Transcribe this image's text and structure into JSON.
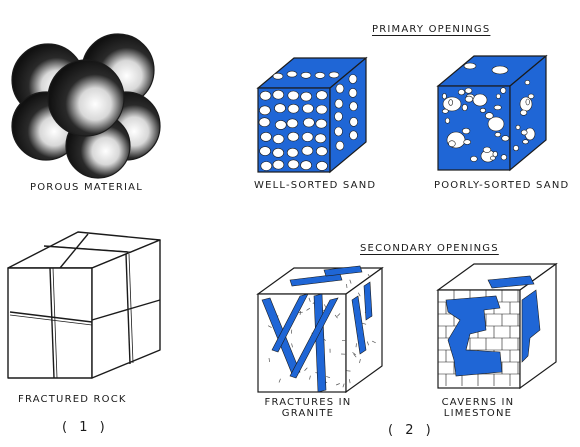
{
  "headers": {
    "primary": "PRIMARY OPENINGS",
    "secondary": "SECONDARY OPENINGS"
  },
  "labels": {
    "porous": "POROUS MATERIAL",
    "well_sorted": "WELL-SORTED SAND",
    "poorly_sorted": "POORLY-SORTED SAND",
    "fractured": "FRACTURED ROCK",
    "fractures_line1": "FRACTURES IN",
    "fractures_line2": "GRANITE",
    "caverns_line1": "CAVERNS IN",
    "caverns_line2": "LIMESTONE"
  },
  "panel_numbers": {
    "left": "( 1 )",
    "right": "( 2 )"
  },
  "colors": {
    "water": "#1f66d6",
    "ink": "#1b1b1b",
    "paper": "#ffffff"
  }
}
